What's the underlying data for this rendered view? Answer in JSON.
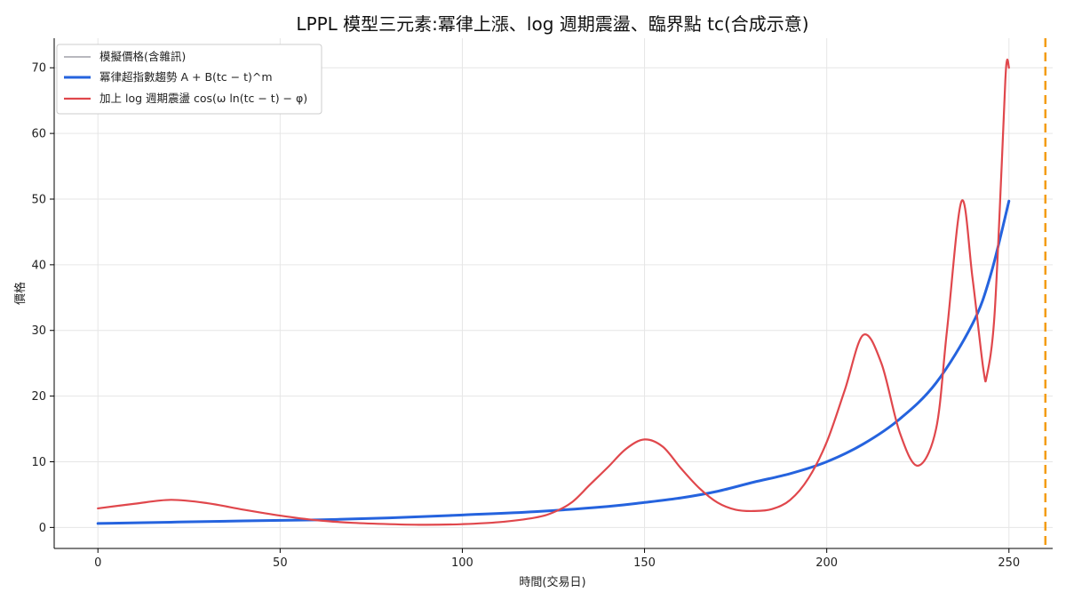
{
  "chart_data": {
    "type": "line",
    "title": "LPPL 模型三元素:冪律上漲、log 週期震盪、臨界點 tc(合成示意)",
    "xlabel": "時間(交易日)",
    "ylabel": "價格",
    "xlim": [
      -12,
      262
    ],
    "ylim": [
      -3.2,
      74.5
    ],
    "xticks": [
      0,
      50,
      100,
      150,
      200,
      250
    ],
    "yticks": [
      0,
      10,
      20,
      30,
      40,
      50,
      60,
      70
    ],
    "grid": true,
    "legend_position": "top-left",
    "critical_time": {
      "x": 260,
      "color": "#f39c12",
      "style": "dashed"
    },
    "series": [
      {
        "name": "模擬價格(含雜訊)",
        "color": "#a0a0a8",
        "x": [],
        "y": []
      },
      {
        "name": "冪律超指數趨勢 A + B(tc − t)^m",
        "color": "#2563de",
        "x": [
          0,
          20,
          40,
          60,
          80,
          100,
          120,
          140,
          150,
          160,
          170,
          180,
          190,
          200,
          210,
          220,
          230,
          240,
          245,
          250
        ],
        "y": [
          0.6,
          0.8,
          1.0,
          1.15,
          1.45,
          1.9,
          2.4,
          3.2,
          3.8,
          4.5,
          5.5,
          6.9,
          8.2,
          10.0,
          12.7,
          16.5,
          22.0,
          31.0,
          38.5,
          49.7
        ]
      },
      {
        "name": "加上 log 週期震盪 cos(ω ln(tc − t) − φ)",
        "color": "#e0474c",
        "x": [
          0,
          10,
          20,
          30,
          40,
          50,
          60,
          70,
          80,
          90,
          100,
          110,
          120,
          125,
          130,
          135,
          140,
          145,
          150,
          155,
          160,
          165,
          170,
          175,
          180,
          185,
          190,
          195,
          200,
          205,
          210,
          215,
          220,
          225,
          230,
          233,
          237,
          240,
          243,
          244,
          246,
          248,
          249,
          249.5,
          250
        ],
        "y": [
          2.9,
          3.6,
          4.2,
          3.7,
          2.7,
          1.8,
          1.1,
          0.7,
          0.5,
          0.4,
          0.5,
          0.8,
          1.5,
          2.3,
          3.8,
          6.5,
          9.2,
          12.0,
          13.4,
          12.3,
          9.0,
          6.0,
          3.8,
          2.7,
          2.5,
          2.8,
          4.2,
          7.5,
          13.0,
          21.0,
          29.3,
          25.0,
          14.5,
          9.4,
          15.0,
          30.0,
          49.7,
          38.0,
          24.0,
          23.3,
          32.0,
          55.0,
          68.0,
          71.2,
          70.0
        ]
      }
    ]
  }
}
